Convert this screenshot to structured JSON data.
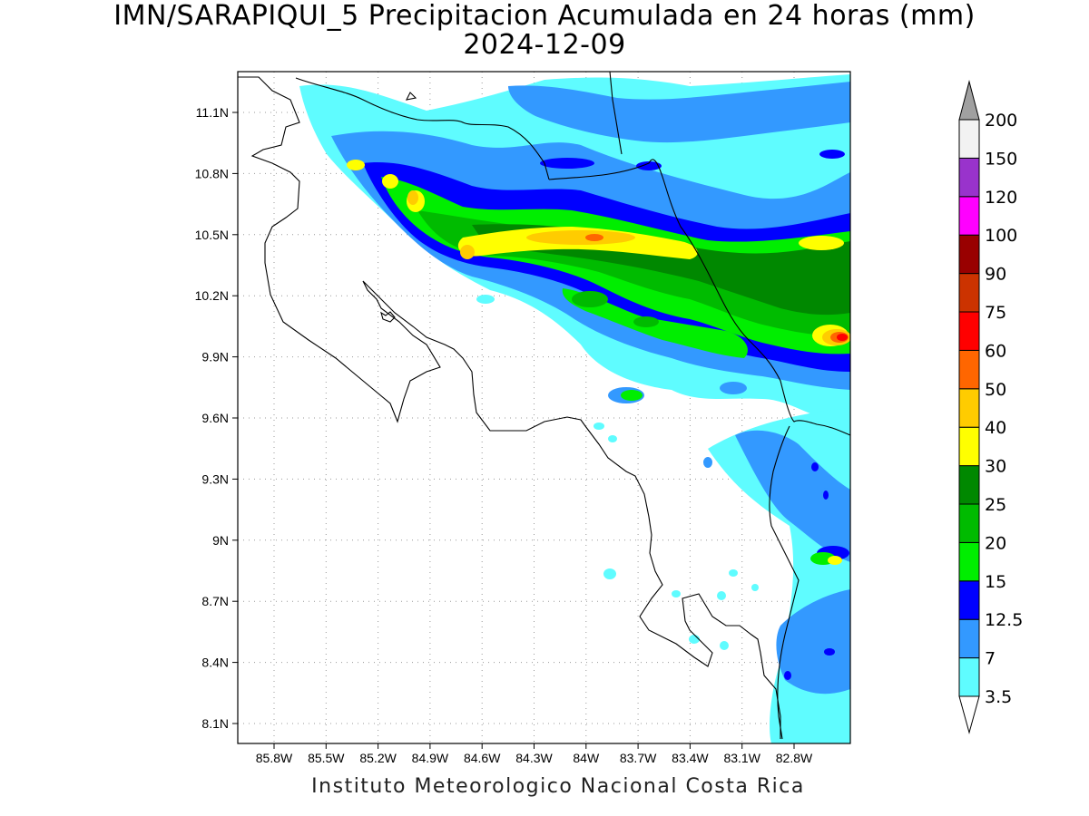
{
  "header": {
    "title": "IMN/SARAPIQUI_5 Precipitacion Acumulada en 24 horas (mm)",
    "date": "2024-12-09"
  },
  "map": {
    "lat_ticks": [
      "11.1N",
      "10.8N",
      "10.5N",
      "10.2N",
      "9.9N",
      "9.6N",
      "9.3N",
      "9N",
      "8.7N",
      "8.4N",
      "8.1N"
    ],
    "lon_ticks": [
      "85.8W",
      "85.5W",
      "85.2W",
      "84.9W",
      "84.6W",
      "84.3W",
      "84W",
      "83.7W",
      "83.4W",
      "83.1W",
      "82.8W"
    ],
    "grid": "dotted",
    "coastline_color": "#000000"
  },
  "colorbar": {
    "labels": [
      "3.5",
      "7",
      "12.5",
      "15",
      "20",
      "25",
      "30",
      "40",
      "50",
      "60",
      "75",
      "90",
      "100",
      "120",
      "150",
      "200"
    ],
    "colors": [
      "#ffffff",
      "#5ffcff",
      "#3399ff",
      "#0000ff",
      "#00ee00",
      "#00bb00",
      "#008800",
      "#ffff00",
      "#ffcc00",
      "#ff6600",
      "#ff0000",
      "#cc3300",
      "#990000",
      "#ff00ff",
      "#9933cc",
      "#f2f2f2",
      "#a0a0a0"
    ]
  },
  "footer": {
    "credit": "Instituto Meteorologico Nacional Costa Rica"
  }
}
